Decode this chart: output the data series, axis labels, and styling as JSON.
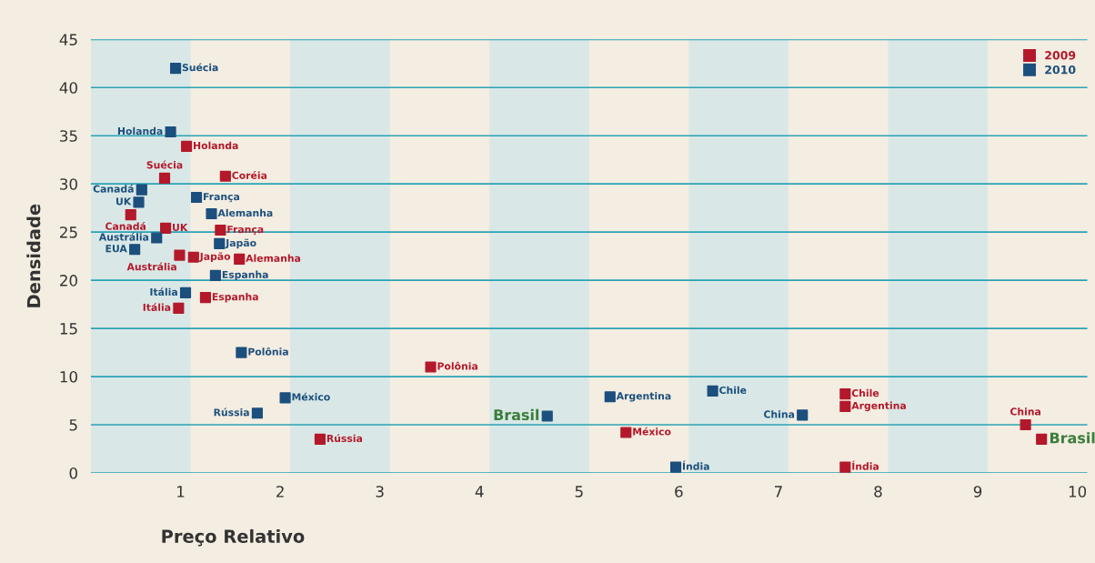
{
  "chart_data": {
    "type": "scatter",
    "xlabel": "Preço Relativo",
    "ylabel": "Densidade",
    "xlim": [
      0.1,
      10.1
    ],
    "ylim": [
      0,
      45
    ],
    "xticks": [
      1,
      2,
      3,
      4,
      5,
      6,
      7,
      8,
      9,
      10
    ],
    "yticks": [
      0,
      5,
      10,
      15,
      20,
      25,
      30,
      35,
      40,
      45
    ],
    "grid": "y",
    "legend": "top right",
    "marker": "square",
    "bands": [
      {
        "axis": "x",
        "from": 0.1,
        "to": 1.1,
        "color": "#d9e8e6"
      },
      {
        "axis": "x",
        "from": 2.1,
        "to": 3.1,
        "color": "#d9e8e6"
      },
      {
        "axis": "x",
        "from": 4.1,
        "to": 5.1,
        "color": "#d9e8e6"
      },
      {
        "axis": "x",
        "from": 6.1,
        "to": 7.1,
        "color": "#d9e8e6"
      },
      {
        "axis": "x",
        "from": 8.1,
        "to": 9.1,
        "color": "#d9e8e6"
      }
    ],
    "series": [
      {
        "name": "2009",
        "color": "#b3192b",
        "x": [
          1.06,
          0.84,
          1.45,
          0.5,
          0.85,
          1.4,
          0.99,
          1.13,
          1.59,
          1.25,
          0.98,
          3.51,
          2.4,
          5.47,
          7.67,
          7.67,
          7.67,
          9.48,
          9.64
        ],
        "values": [
          33.9,
          30.6,
          30.8,
          26.8,
          25.4,
          25.2,
          22.6,
          22.4,
          22.2,
          18.2,
          17.1,
          11.0,
          3.5,
          4.2,
          8.2,
          6.9,
          0.6,
          5.0,
          3.5
        ],
        "value_labels": [
          "Holanda",
          "Suécia",
          "Coréia",
          "Canadá",
          "UK",
          "França",
          "Austrália",
          "Japão",
          "Alemanha",
          "Espanha",
          "Itália",
          "Polônia",
          "Rússia",
          "México",
          "Chile",
          "Argentina",
          "Índia",
          "China",
          "Brasil"
        ]
      },
      {
        "name": "2010",
        "color": "#1b4f7d",
        "x": [
          0.95,
          0.9,
          0.61,
          0.58,
          0.76,
          0.54,
          1.16,
          1.31,
          1.39,
          1.35,
          1.05,
          1.61,
          2.05,
          1.77,
          4.68,
          5.31,
          6.34,
          7.24,
          5.97
        ],
        "values": [
          42.0,
          35.4,
          29.4,
          28.1,
          24.4,
          23.2,
          28.6,
          26.9,
          23.8,
          20.5,
          18.7,
          12.5,
          7.8,
          6.2,
          5.9,
          7.9,
          8.5,
          6.0,
          0.6
        ],
        "value_labels": [
          "Suécia",
          "Holanda",
          "Canadá",
          "UK",
          "Austrália",
          "EUA",
          "França",
          "Alemanha",
          "Japão",
          "Espanha",
          "Itália",
          "Polônia",
          "México",
          "Rússia",
          "Brasil",
          "Argentina",
          "Chile",
          "China",
          "Índia"
        ]
      }
    ]
  }
}
